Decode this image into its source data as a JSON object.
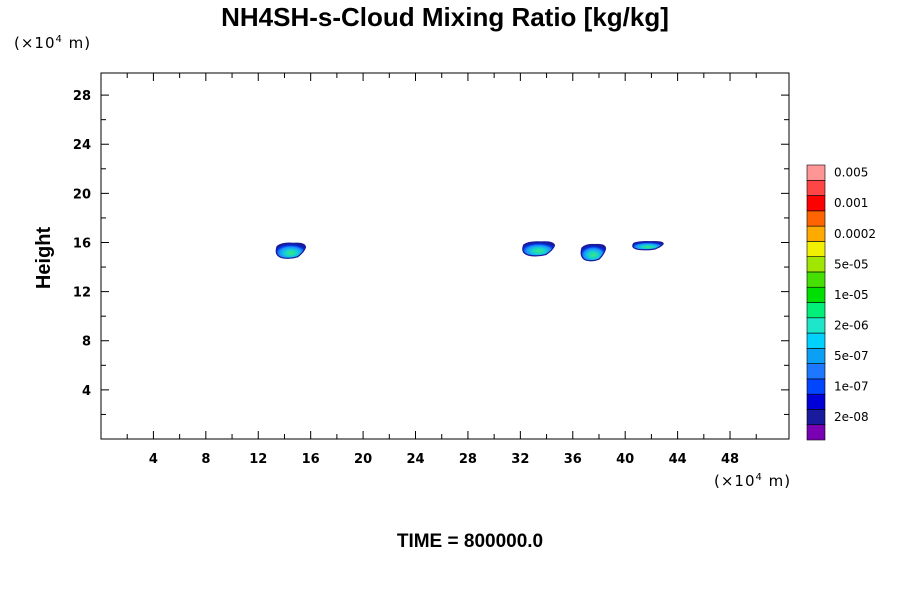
{
  "chart_data": {
    "type": "heatmap",
    "title": "NH4SH-s-Cloud Mixing Ratio [kg/kg]",
    "ylabel": "Height",
    "xlabel": "",
    "x_unit": "(×10⁴ m)",
    "y_unit": "(×10⁴ m)",
    "time_label": "TIME = 800000.0",
    "xlim": [
      0,
      52.5
    ],
    "ylim": [
      0,
      29.8
    ],
    "x_ticks": [
      4,
      8,
      12,
      16,
      20,
      24,
      28,
      32,
      36,
      40,
      44,
      48
    ],
    "y_ticks": [
      4,
      8,
      12,
      16,
      20,
      24,
      28
    ],
    "colorbar": {
      "colors": [
        "#7a00b4",
        "#1a1a9c",
        "#0000d8",
        "#0046ff",
        "#1e78ff",
        "#0aa0f5",
        "#00d2ff",
        "#1ee6c8",
        "#00f07a",
        "#00e000",
        "#46e000",
        "#a0e600",
        "#f0f000",
        "#ffaa00",
        "#ff6400",
        "#ff0000",
        "#ff4646",
        "#ff9696"
      ],
      "labels": [
        "2e-08",
        "1e-07",
        "5e-07",
        "2e-06",
        "1e-05",
        "5e-05",
        "0.0002",
        "0.001",
        "0.005"
      ]
    },
    "clouds": [
      {
        "x": [
          13.2,
          15.6
        ],
        "y": [
          14.7,
          16.0
        ]
      },
      {
        "x": [
          32.0,
          34.6
        ],
        "y": [
          14.9,
          16.1
        ]
      },
      {
        "x": [
          36.5,
          38.5
        ],
        "y": [
          14.5,
          15.9
        ]
      },
      {
        "x": [
          40.4,
          42.9
        ],
        "y": [
          15.4,
          16.1
        ]
      }
    ]
  }
}
